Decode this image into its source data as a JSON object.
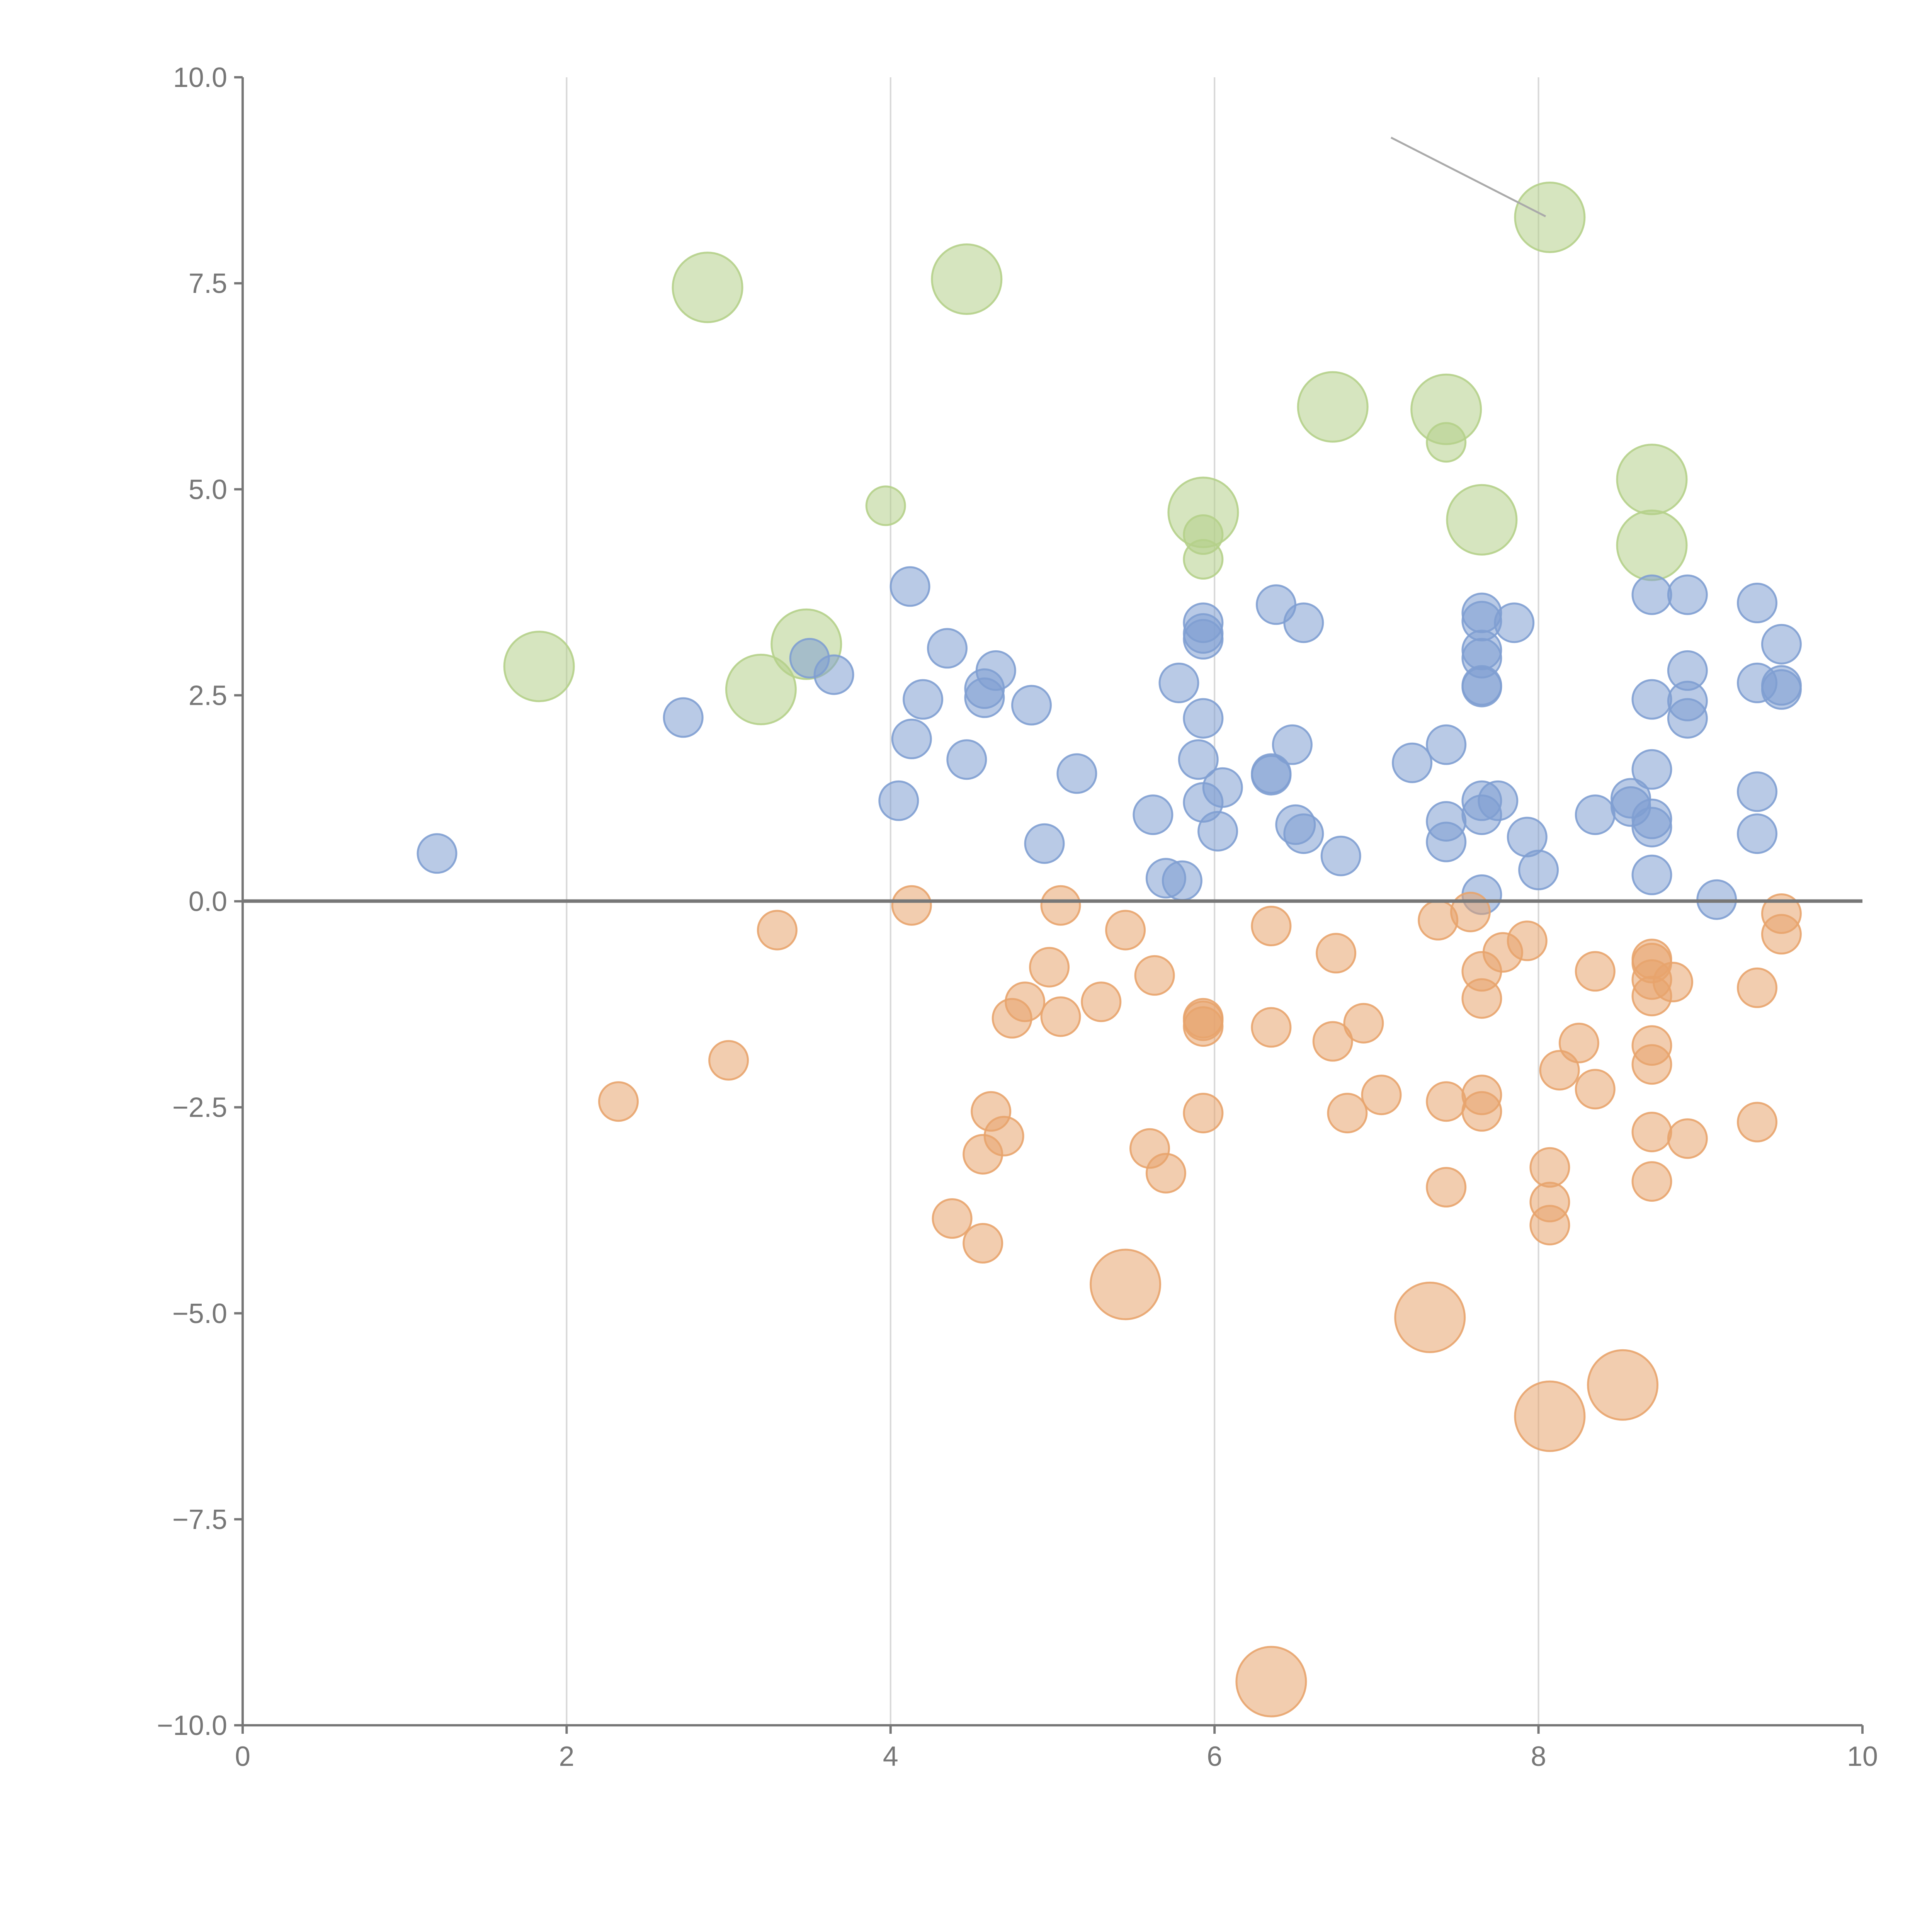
{
  "chart_data": {
    "type": "scatter",
    "title": "",
    "xlabel": "",
    "ylabel": "",
    "xlim": [
      0,
      10
    ],
    "ylim": [
      -10,
      10
    ],
    "grid": "vertical",
    "legend": "none",
    "x_ticks": [
      "0",
      "2",
      "4",
      "6",
      "8",
      "10"
    ],
    "x_tick_values": [
      0,
      2,
      4,
      6,
      8,
      10
    ],
    "y_ticks": [
      "10.0",
      "7.5",
      "5.0",
      "2.5",
      "0.0",
      "−2.5",
      "−5.0",
      "−7.5",
      "−10.0"
    ],
    "y_tick_values": [
      10,
      7.5,
      5,
      2.5,
      0,
      -2.5,
      -5,
      -7.5,
      -10
    ],
    "colors": {
      "green": "#b5d08a",
      "blue": "#7f9fd2",
      "orange": "#e8a46d",
      "axis": "#777777"
    },
    "series": [
      {
        "name": "green",
        "color": "#b5d08a",
        "points": [
          [
            2.87,
            7.45,
            3
          ],
          [
            4.47,
            7.55,
            3
          ],
          [
            8.07,
            8.3,
            3
          ],
          [
            6.73,
            6.0,
            3
          ],
          [
            7.43,
            5.97,
            3
          ],
          [
            7.43,
            5.57,
            1
          ],
          [
            3.97,
            4.8,
            1
          ],
          [
            5.93,
            4.72,
            3
          ],
          [
            5.93,
            4.45,
            1
          ],
          [
            5.93,
            4.15,
            1
          ],
          [
            7.65,
            4.63,
            3
          ],
          [
            8.7,
            5.12,
            3
          ],
          [
            8.7,
            4.32,
            3
          ],
          [
            1.83,
            2.85,
            3
          ],
          [
            3.2,
            2.57,
            3
          ],
          [
            3.48,
            3.12,
            3
          ]
        ]
      },
      {
        "name": "blue",
        "color": "#7f9fd2",
        "points": [
          [
            1.2,
            0.58,
            1
          ],
          [
            2.72,
            2.23,
            1
          ],
          [
            3.5,
            2.95,
            1
          ],
          [
            3.65,
            2.75,
            1
          ],
          [
            4.12,
            3.82,
            1
          ],
          [
            4.35,
            3.07,
            1
          ],
          [
            4.2,
            2.45,
            1
          ],
          [
            4.13,
            1.97,
            1
          ],
          [
            4.05,
            1.22,
            1
          ],
          [
            4.47,
            1.72,
            1
          ],
          [
            4.65,
            2.8,
            1
          ],
          [
            4.58,
            2.58,
            1
          ],
          [
            4.58,
            2.47,
            1
          ],
          [
            4.87,
            2.38,
            1
          ],
          [
            5.15,
            1.55,
            1
          ],
          [
            4.95,
            0.7,
            1
          ],
          [
            5.62,
            1.05,
            1
          ],
          [
            5.78,
            2.65,
            1
          ],
          [
            5.93,
            3.38,
            1
          ],
          [
            5.93,
            3.25,
            1
          ],
          [
            5.93,
            3.18,
            1
          ],
          [
            5.93,
            2.22,
            1
          ],
          [
            5.9,
            1.72,
            1
          ],
          [
            5.93,
            1.2,
            1
          ],
          [
            6.05,
            1.38,
            1
          ],
          [
            6.02,
            0.85,
            1
          ],
          [
            5.7,
            0.28,
            1
          ],
          [
            5.8,
            0.25,
            1
          ],
          [
            6.38,
            3.6,
            1
          ],
          [
            6.55,
            3.38,
            1
          ],
          [
            6.35,
            1.55,
            1
          ],
          [
            6.35,
            1.53,
            1
          ],
          [
            6.48,
            1.9,
            1
          ],
          [
            6.5,
            0.93,
            1
          ],
          [
            6.55,
            0.82,
            1
          ],
          [
            6.78,
            0.55,
            1
          ],
          [
            7.22,
            1.68,
            1
          ],
          [
            7.43,
            1.9,
            1
          ],
          [
            7.43,
            0.97,
            1
          ],
          [
            7.43,
            0.72,
            1
          ],
          [
            7.65,
            3.5,
            1
          ],
          [
            7.65,
            3.4,
            1
          ],
          [
            7.65,
            3.05,
            1
          ],
          [
            7.65,
            2.95,
            1
          ],
          [
            7.65,
            2.62,
            1
          ],
          [
            7.65,
            2.6,
            1
          ],
          [
            7.85,
            3.38,
            1
          ],
          [
            7.65,
            1.22,
            1
          ],
          [
            7.65,
            1.05,
            1
          ],
          [
            7.75,
            1.22,
            1
          ],
          [
            7.93,
            0.78,
            1
          ],
          [
            8.0,
            0.38,
            1
          ],
          [
            7.65,
            0.08,
            1
          ],
          [
            8.35,
            1.05,
            1
          ],
          [
            8.57,
            1.15,
            1
          ],
          [
            8.57,
            1.25,
            1
          ],
          [
            8.7,
            3.72,
            1
          ],
          [
            8.92,
            3.72,
            1
          ],
          [
            8.7,
            2.45,
            1
          ],
          [
            8.92,
            2.8,
            1
          ],
          [
            8.92,
            2.43,
            1
          ],
          [
            8.92,
            2.22,
            1
          ],
          [
            8.7,
            1.6,
            1
          ],
          [
            8.7,
            1.0,
            1
          ],
          [
            8.7,
            0.9,
            1
          ],
          [
            8.7,
            0.32,
            1
          ],
          [
            9.1,
            0.02,
            1
          ],
          [
            9.35,
            3.62,
            1
          ],
          [
            9.5,
            3.12,
            1
          ],
          [
            9.35,
            2.65,
            1
          ],
          [
            9.5,
            2.62,
            1
          ],
          [
            9.5,
            2.57,
            1
          ],
          [
            9.35,
            1.33,
            1
          ],
          [
            9.35,
            0.82,
            1
          ]
        ]
      },
      {
        "name": "orange",
        "color": "#e8a46d",
        "points": [
          [
            2.32,
            -2.43,
            1
          ],
          [
            3.0,
            -1.93,
            1
          ],
          [
            3.3,
            -0.35,
            1
          ],
          [
            4.13,
            -0.05,
            1
          ],
          [
            4.38,
            -3.85,
            1
          ],
          [
            4.57,
            -3.07,
            1
          ],
          [
            4.57,
            -4.15,
            1
          ],
          [
            4.62,
            -2.55,
            1
          ],
          [
            4.7,
            -2.85,
            1
          ],
          [
            4.75,
            -1.42,
            1
          ],
          [
            4.83,
            -1.22,
            1
          ],
          [
            4.98,
            -0.8,
            1
          ],
          [
            5.05,
            -0.05,
            1
          ],
          [
            5.05,
            -1.4,
            1
          ],
          [
            5.3,
            -1.22,
            1
          ],
          [
            5.45,
            -0.35,
            1
          ],
          [
            5.45,
            -4.65,
            3
          ],
          [
            5.6,
            -3.0,
            1
          ],
          [
            5.63,
            -0.9,
            1
          ],
          [
            5.7,
            -3.3,
            1
          ],
          [
            5.93,
            -1.42,
            1
          ],
          [
            5.93,
            -1.52,
            1
          ],
          [
            5.93,
            -1.45,
            1
          ],
          [
            5.93,
            -2.57,
            1
          ],
          [
            6.35,
            -0.3,
            1
          ],
          [
            6.35,
            -1.53,
            1
          ],
          [
            6.35,
            -9.47,
            3
          ],
          [
            6.73,
            -1.7,
            1
          ],
          [
            6.75,
            -0.63,
            1
          ],
          [
            6.82,
            -2.57,
            1
          ],
          [
            6.92,
            -1.48,
            1
          ],
          [
            7.03,
            -2.35,
            1
          ],
          [
            7.33,
            -5.05,
            3
          ],
          [
            7.38,
            -0.23,
            1
          ],
          [
            7.43,
            -2.43,
            1
          ],
          [
            7.43,
            -3.47,
            1
          ],
          [
            7.58,
            -0.13,
            1
          ],
          [
            7.65,
            -0.85,
            1
          ],
          [
            7.65,
            -1.18,
            1
          ],
          [
            7.65,
            -2.35,
            1
          ],
          [
            7.65,
            -2.55,
            1
          ],
          [
            7.78,
            -0.62,
            1
          ],
          [
            7.93,
            -0.48,
            1
          ],
          [
            8.07,
            -3.23,
            1
          ],
          [
            8.07,
            -3.65,
            1
          ],
          [
            8.07,
            -3.93,
            1
          ],
          [
            8.07,
            -6.25,
            3
          ],
          [
            8.13,
            -2.05,
            1
          ],
          [
            8.25,
            -1.72,
            1
          ],
          [
            8.35,
            -0.85,
            1
          ],
          [
            8.35,
            -2.28,
            1
          ],
          [
            8.52,
            -5.87,
            3
          ],
          [
            8.7,
            -0.7,
            1
          ],
          [
            8.7,
            -0.75,
            1
          ],
          [
            8.7,
            -0.95,
            1
          ],
          [
            8.7,
            -1.15,
            1
          ],
          [
            8.7,
            -1.75,
            1
          ],
          [
            8.7,
            -1.98,
            1
          ],
          [
            8.7,
            -2.8,
            1
          ],
          [
            8.7,
            -3.4,
            1
          ],
          [
            8.83,
            -0.98,
            1
          ],
          [
            8.92,
            -2.88,
            1
          ],
          [
            9.35,
            -1.05,
            1
          ],
          [
            9.35,
            -2.68,
            1
          ],
          [
            9.5,
            -0.15,
            1
          ],
          [
            9.5,
            -0.4,
            1
          ]
        ]
      }
    ]
  }
}
